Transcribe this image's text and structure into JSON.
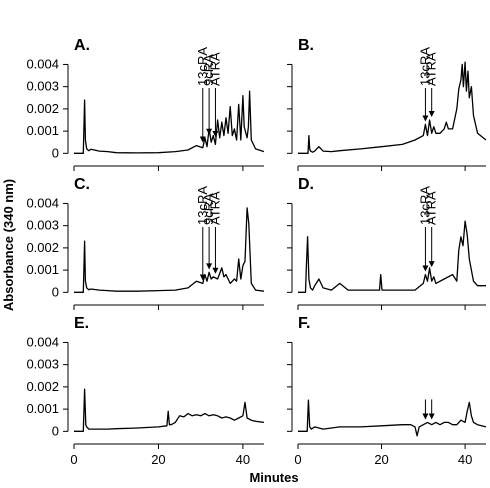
{
  "chart_data": [
    {
      "type": "line",
      "panel_label": "A.",
      "ylim": [
        -0.0003,
        0.0042
      ],
      "xlim": [
        0,
        45
      ],
      "y_ticks": [
        0,
        0.001,
        0.002,
        0.003,
        0.004
      ],
      "y_tick_labels": [
        "0",
        "0.001",
        "0.002",
        "0.003",
        "0.004"
      ],
      "x_ticks": [
        0,
        20,
        40
      ],
      "x_tick_labels": [],
      "series": [
        {
          "x": [
            0,
            2.2,
            2.5,
            2.7,
            3.0,
            3.5,
            4,
            6,
            8,
            10,
            15,
            20,
            24,
            27,
            29,
            30.5,
            31,
            31.5,
            32,
            32.5,
            33,
            33.5,
            34,
            34.5,
            35,
            35.5,
            36,
            36.5,
            37,
            37.5,
            38,
            38.5,
            39,
            39.5,
            40,
            40.3,
            41,
            41.3,
            41.6,
            42,
            43,
            45
          ],
          "y": [
            0,
            0,
            0.0024,
            0.0006,
            0.0002,
            0.00012,
            0.00018,
            0.0001,
            8e-05,
            3e-05,
            2e-05,
            3e-05,
            8e-05,
            0.00015,
            0.00035,
            0.00025,
            0.0007,
            0.0003,
            0.0011,
            0.0005,
            0.0008,
            0.0004,
            0.0015,
            0.0007,
            0.0014,
            0.0008,
            0.0016,
            0.0009,
            0.0021,
            0.0008,
            0.0011,
            0.0006,
            0.0022,
            0.0006,
            0.0026,
            0.0012,
            0.0007,
            0.0012,
            0.0028,
            0.0006,
            0.0002,
            8e-05
          ]
        }
      ],
      "annotations": [
        {
          "label": "13cRA",
          "x": 30.5,
          "y": 0.00035
        },
        {
          "label": "9cRA",
          "x": 32,
          "y": 0.0007
        },
        {
          "label": "ATRA",
          "x": 33.5,
          "y": 0.0006
        }
      ]
    },
    {
      "type": "line",
      "panel_label": "B.",
      "ylim": [
        -0.0003,
        0.0042
      ],
      "xlim": [
        0,
        45
      ],
      "y_ticks": [
        0,
        0.001,
        0.002,
        0.003,
        0.004
      ],
      "y_tick_labels": [],
      "x_ticks": [
        0,
        20,
        40
      ],
      "x_tick_labels": [],
      "series": [
        {
          "x": [
            0,
            2.4,
            2.6,
            2.8,
            3.0,
            3.5,
            4,
            5,
            6,
            8,
            10,
            15,
            20,
            25,
            28,
            30,
            30.5,
            31,
            31.5,
            32,
            32.5,
            33,
            34,
            35,
            35.5,
            36,
            37,
            38,
            38.5,
            39,
            39.3,
            39.6,
            40,
            40.3,
            40.7,
            41,
            41.5,
            42,
            43,
            45
          ],
          "y": [
            0,
            0,
            0.0008,
            0.0002,
            0.0001,
            5e-05,
            0.0001,
            0.0003,
            0.0001,
            8e-05,
            0.00012,
            0.0002,
            0.0003,
            0.0004,
            0.0006,
            0.0008,
            0.0013,
            0.0008,
            0.0015,
            0.0009,
            0.0012,
            0.0009,
            0.0009,
            0.0011,
            0.0014,
            0.0011,
            0.0011,
            0.002,
            0.0029,
            0.0033,
            0.004,
            0.003,
            0.0041,
            0.0028,
            0.0037,
            0.0025,
            0.003,
            0.0017,
            0.0009,
            0.0006
          ]
        }
      ],
      "annotations": [
        {
          "label": "13cRA",
          "x": 30.5,
          "y": 0.0013
        },
        {
          "label": "ATRA",
          "x": 32,
          "y": 0.0015
        }
      ]
    },
    {
      "type": "line",
      "panel_label": "C.",
      "ylim": [
        -0.0003,
        0.0042
      ],
      "xlim": [
        0,
        45
      ],
      "y_ticks": [
        0,
        0.001,
        0.002,
        0.003,
        0.004
      ],
      "y_tick_labels": [
        "0",
        "0.001",
        "0.002",
        "0.003",
        "0.004"
      ],
      "x_ticks": [
        0,
        20,
        40
      ],
      "x_tick_labels": [],
      "series": [
        {
          "x": [
            0,
            2.2,
            2.5,
            2.7,
            3.0,
            3.5,
            4,
            6,
            8,
            10,
            15,
            20,
            24,
            27,
            29,
            30.5,
            31,
            31.5,
            32,
            32.5,
            33,
            34,
            35,
            35.5,
            36,
            37,
            38,
            38.5,
            39,
            39.5,
            40,
            40.5,
            41,
            41.4,
            42,
            43,
            45
          ],
          "y": [
            0,
            0,
            0.0023,
            0.0005,
            0.0002,
            0.00012,
            0.00015,
            0.0001,
            8e-05,
            5e-05,
            5e-05,
            8e-05,
            0.0001,
            0.0002,
            0.0005,
            0.0004,
            0.0008,
            0.0005,
            0.0009,
            0.0006,
            0.0007,
            0.0006,
            0.0011,
            0.0007,
            0.0008,
            0.0004,
            0.0006,
            0.0005,
            0.0015,
            0.0006,
            0.0012,
            0.0014,
            0.0038,
            0.0031,
            0.0004,
            0.0001,
            5e-05
          ]
        }
      ],
      "annotations": [
        {
          "label": "13cRA",
          "x": 30.5,
          "y": 0.0004
        },
        {
          "label": "9cRA",
          "x": 32,
          "y": 0.0009
        },
        {
          "label": "ATRA",
          "x": 33.5,
          "y": 0.0007
        }
      ]
    },
    {
      "type": "line",
      "panel_label": "D.",
      "ylim": [
        -0.0003,
        0.0042
      ],
      "xlim": [
        0,
        45
      ],
      "y_ticks": [
        0,
        0.001,
        0.002,
        0.003,
        0.004
      ],
      "y_tick_labels": [],
      "x_ticks": [
        0,
        20,
        40
      ],
      "x_tick_labels": [],
      "series": [
        {
          "x": [
            0,
            1.8,
            2.0,
            2.3,
            2.6,
            3.0,
            3.5,
            4,
            5,
            6,
            8,
            10,
            12,
            15,
            19.5,
            19.8,
            20.1,
            20.5,
            25,
            28,
            30,
            30.5,
            31,
            31.5,
            32,
            32.5,
            33,
            35,
            37,
            38,
            38.5,
            39,
            39.5,
            40,
            40.5,
            41,
            42,
            43,
            45
          ],
          "y": [
            0,
            0,
            0.0012,
            0.0025,
            0.0006,
            0.0002,
            0.0001,
            0.0003,
            0.0006,
            0.0002,
            0.0001,
            0.0004,
            0.0001,
            0.0001,
            0.0001,
            0.0008,
            0.0001,
            0.0001,
            0.0001,
            0.0001,
            0.0004,
            0.0008,
            0.0005,
            0.0011,
            0.0005,
            0.0007,
            0.0004,
            0.0006,
            0.0008,
            0.0005,
            0.0019,
            0.0025,
            0.0021,
            0.0032,
            0.0026,
            0.0015,
            0.0005,
            0.0003,
            0.0003
          ]
        }
      ],
      "annotations": [
        {
          "label": "13cRA",
          "x": 30.5,
          "y": 0.0008
        },
        {
          "label": "ATRA",
          "x": 32,
          "y": 0.001
        }
      ]
    },
    {
      "type": "line",
      "panel_label": "E.",
      "ylim": [
        -0.0003,
        0.0042
      ],
      "xlim": [
        0,
        45
      ],
      "y_ticks": [
        0,
        0.001,
        0.002,
        0.003,
        0.004
      ],
      "y_tick_labels": [
        "0",
        "0.001",
        "0.002",
        "0.003",
        "0.004"
      ],
      "x_ticks": [
        0,
        20,
        40
      ],
      "x_tick_labels": [
        "0",
        "20",
        "40"
      ],
      "series": [
        {
          "x": [
            0,
            2.2,
            2.5,
            2.8,
            3.0,
            3.5,
            5,
            8,
            10,
            15,
            20,
            22,
            22.3,
            22.6,
            23,
            24,
            25,
            26,
            27,
            28,
            29,
            30,
            31,
            32,
            33,
            34,
            35,
            36,
            37,
            38,
            39,
            40,
            40.5,
            41,
            42,
            43,
            45
          ],
          "y": [
            0,
            0,
            0.0019,
            0.0003,
            0.0002,
            0.0001,
            0.0001,
            0.0001,
            0.00012,
            0.00015,
            0.0002,
            0.00025,
            0.0009,
            0.0003,
            0.0003,
            0.0004,
            0.0007,
            0.00065,
            0.0008,
            0.0007,
            0.00075,
            0.0007,
            0.0008,
            0.0007,
            0.00075,
            0.0007,
            0.0006,
            0.00065,
            0.0006,
            0.0005,
            0.0006,
            0.0007,
            0.0013,
            0.0006,
            0.0005,
            0.00045,
            0.0004
          ]
        }
      ],
      "annotations": []
    },
    {
      "type": "line",
      "panel_label": "F.",
      "ylim": [
        -0.0003,
        0.0042
      ],
      "xlim": [
        0,
        45
      ],
      "y_ticks": [
        0,
        0.001,
        0.002,
        0.003,
        0.004
      ],
      "y_tick_labels": [],
      "x_ticks": [
        0,
        20,
        40
      ],
      "x_tick_labels": [
        "0",
        "20",
        "40"
      ],
      "series": [
        {
          "x": [
            0,
            2.2,
            2.5,
            2.8,
            3.2,
            4,
            6,
            10,
            15,
            20,
            25,
            27,
            28,
            28.5,
            29,
            30,
            31,
            32,
            33,
            34,
            35,
            36,
            37,
            38,
            39,
            40,
            40.5,
            41,
            41.5,
            42,
            43,
            45
          ],
          "y": [
            0,
            0,
            0.0014,
            0.0002,
            0.0001,
            0.0002,
            0.0001,
            0.0002,
            0.0002,
            0.00025,
            0.0003,
            0.0003,
            0.0002,
            -0.0002,
            0.0002,
            0.0003,
            0.0004,
            0.0003,
            0.0004,
            0.0003,
            0.0004,
            0.0004,
            0.0003,
            0.0003,
            0.0005,
            0.0004,
            0.0009,
            0.0013,
            0.0007,
            0.0004,
            0.0003,
            0.0002
          ]
        }
      ],
      "annotations": [
        {
          "label": "",
          "x": 30.5,
          "y": 0.0004
        },
        {
          "label": "",
          "x": 32,
          "y": 0.0004
        }
      ]
    }
  ],
  "y_axis_title": "Absorbance (340 nm)",
  "x_axis_title": "Minutes",
  "colors": {
    "trace": "#000000",
    "axis": "#000000",
    "background": "#ffffff"
  }
}
